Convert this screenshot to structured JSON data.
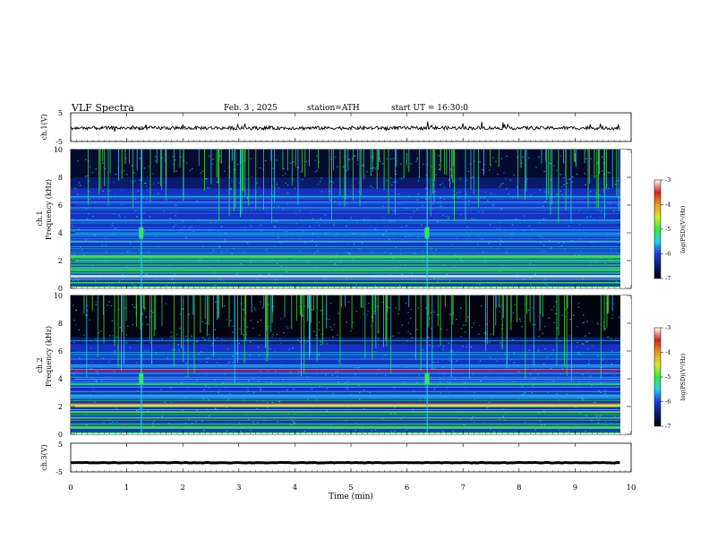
{
  "header": {
    "title": "VLF Spectra",
    "date": "Feb. 3 , 2025",
    "station": "station=ATH",
    "start": "start UT = 16:30:0"
  },
  "colors": {
    "colormap": [
      "#000000",
      "#0a1a6e",
      "#1a3cdc",
      "#1e7cf0",
      "#22d2f0",
      "#2ad08a",
      "#3ce83c",
      "#d8e82a",
      "#e89a1e",
      "#d8201a",
      "#ffffff"
    ],
    "trace": "#000000"
  },
  "chart_data": [
    {
      "type": "line",
      "name": "ch1-waveform",
      "ylabel": "ch.1(V)",
      "ylim": [
        -5,
        5
      ],
      "yticks": [
        "5",
        "-5"
      ],
      "xlim": [
        0,
        10
      ],
      "baseline": -0.3
    },
    {
      "type": "heatmap",
      "name": "ch1-spectrogram",
      "ylabel": "ch.1 Frequency (kHz)",
      "ylim": [
        0,
        10
      ],
      "yticks": [
        "0",
        "2",
        "4",
        "6",
        "8",
        "10"
      ],
      "xlim": [
        0,
        10
      ],
      "colorbar": {
        "label": "log(PSD)(V²/Hz)",
        "range": [
          -7,
          -3
        ],
        "ticks": [
          "-3",
          "-4",
          "-5",
          "-6",
          "-7"
        ]
      },
      "bright_bursts_min": [
        1.25,
        6.35
      ],
      "burst_freq_khz": 4
    },
    {
      "type": "heatmap",
      "name": "ch2-spectrogram",
      "ylabel": "ch.2 Frequency (kHz)",
      "ylim": [
        0,
        10
      ],
      "yticks": [
        "0",
        "2",
        "4",
        "6",
        "8",
        "10"
      ],
      "xlim": [
        0,
        10
      ],
      "colorbar": {
        "label": "log(PSD)(V²/Hz)",
        "range": [
          -7,
          -3
        ],
        "ticks": [
          "-3",
          "-4",
          "-5",
          "-6",
          "-7"
        ]
      },
      "bright_bursts_min": [
        1.25,
        6.35
      ],
      "burst_freq_khz": 4
    },
    {
      "type": "line",
      "name": "ch3-waveform",
      "ylabel": "ch.3(V)",
      "ylim": [
        -5,
        5
      ],
      "yticks": [
        "5",
        "0",
        "-5"
      ],
      "xlim": [
        0,
        10
      ],
      "baseline": -1.8,
      "xlabel": "Time (min)",
      "xticks": [
        "0",
        "1",
        "2",
        "3",
        "4",
        "5",
        "6",
        "7",
        "8",
        "9",
        "10"
      ]
    }
  ]
}
